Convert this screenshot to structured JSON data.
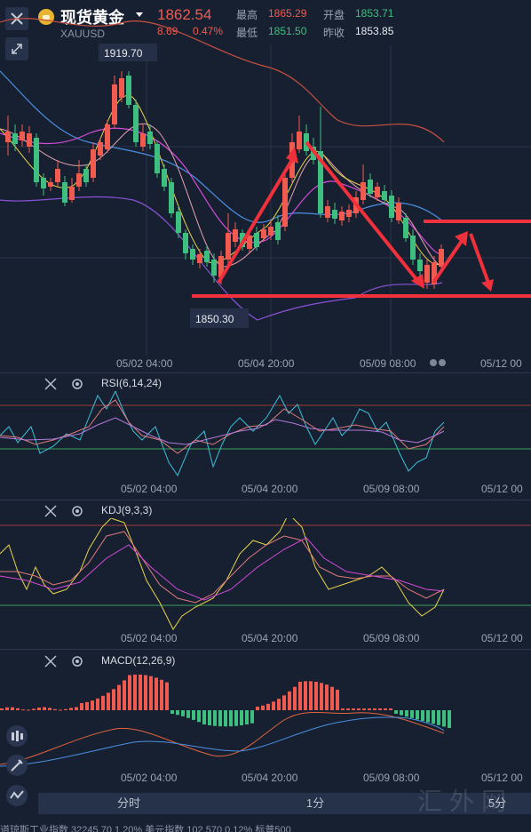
{
  "header": {
    "title": "现货黄金",
    "code": "XAUUSD",
    "price": "1862.54",
    "change": "8.69",
    "change_pct": "0.47%",
    "high_label": "最高",
    "high": "1865.29",
    "open_label": "开盘",
    "open": "1853.71",
    "low_label": "最低",
    "low": "1851.50",
    "prev_label": "昨收",
    "prev": "1853.85"
  },
  "main_chart": {
    "label_high": "1919.70",
    "label_low": "1850.30",
    "xticks": [
      "05/02 04:00",
      "05/04 20:00",
      "05/09 08:00",
      "05/12 00"
    ]
  },
  "rsi": {
    "label": "RSI(6,14,24)",
    "xticks": [
      "05/02 04:00",
      "05/04 20:00",
      "05/09 08:00",
      "05/12 00"
    ]
  },
  "kdj": {
    "label": "KDJ(9,3,3)",
    "xticks": [
      "05/02 04:00",
      "05/04 20:00",
      "05/09 08:00",
      "05/12 00"
    ]
  },
  "macd": {
    "label": "MACD(12,26,9)",
    "xticks": [
      "05/02 04:00",
      "05/04 20:00",
      "05/09 08:00",
      "05/12 00"
    ]
  },
  "tabs": [
    "分时",
    "1分",
    "5分"
  ],
  "ticker": "道琼斯工业指数  32245.70  1.20%    美元指数  102.570  0.12%    标普500",
  "watermark": "汇外网",
  "colors": {
    "up": "#f05a4f",
    "down": "#3fbf7f",
    "background": "#172031",
    "arrow": "#f0303a"
  },
  "icons": [
    "close-icon",
    "collapse-icon",
    "gear-icon",
    "candles-icon",
    "draw-icon",
    "indicator-icon"
  ]
}
